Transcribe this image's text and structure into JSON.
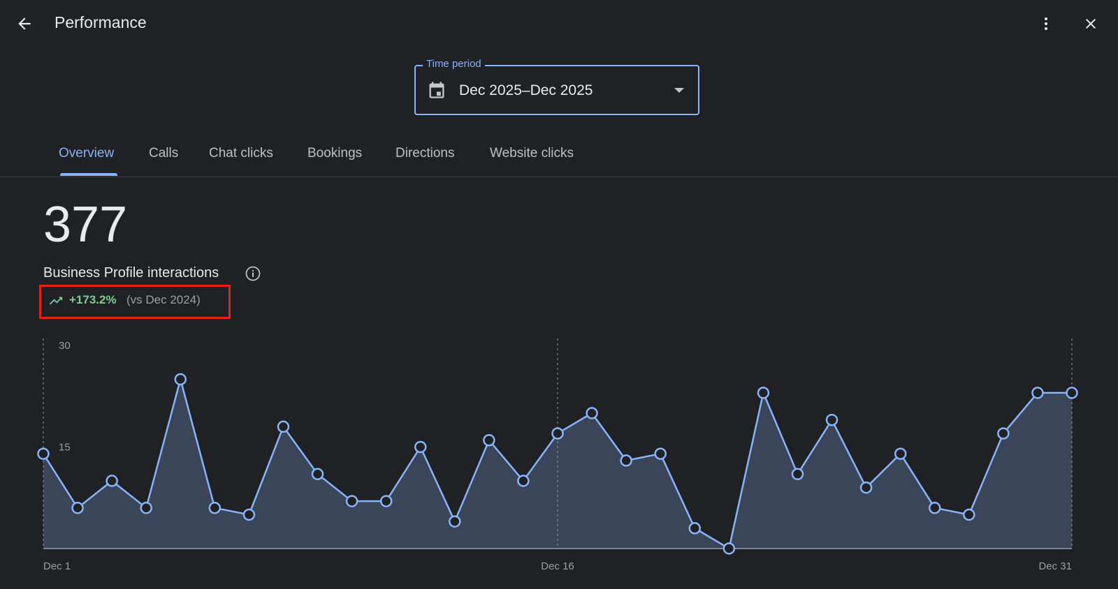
{
  "header": {
    "title": "Performance"
  },
  "time_period": {
    "label": "Time period",
    "value": "Dec 2025–Dec 2025"
  },
  "tabs": [
    {
      "label": "Overview",
      "active": true
    },
    {
      "label": "Calls"
    },
    {
      "label": "Chat clicks"
    },
    {
      "label": "Bookings"
    },
    {
      "label": "Directions"
    },
    {
      "label": "Website clicks"
    }
  ],
  "metric": {
    "value": "377",
    "label": "Business Profile interactions",
    "change": "+173.2%",
    "comparison": "(vs Dec 2024)"
  },
  "colors": {
    "accent": "#8ab4f8",
    "positive": "#81c995",
    "highlight": "#e2231a",
    "background": "#202124"
  },
  "icons": {
    "back": "arrow-left-icon",
    "more": "more-vert-icon",
    "close": "close-icon",
    "calendar": "calendar-icon",
    "dropdown": "caret-down-icon",
    "info": "info-icon",
    "trend": "trending-up-icon"
  },
  "chart_data": {
    "type": "area",
    "ylim": [
      0,
      30
    ],
    "yticks": [
      30,
      15
    ],
    "x": [
      "Dec 1",
      "Dec 2",
      "Dec 3",
      "Dec 4",
      "Dec 5",
      "Dec 6",
      "Dec 7",
      "Dec 8",
      "Dec 9",
      "Dec 10",
      "Dec 11",
      "Dec 12",
      "Dec 13",
      "Dec 14",
      "Dec 15",
      "Dec 16",
      "Dec 17",
      "Dec 18",
      "Dec 19",
      "Dec 20",
      "Dec 21",
      "Dec 22",
      "Dec 23",
      "Dec 24",
      "Dec 25",
      "Dec 26",
      "Dec 27",
      "Dec 28",
      "Dec 29",
      "Dec 30",
      "Dec 31"
    ],
    "xticks": [
      "Dec 1",
      "Dec 16",
      "Dec 31"
    ],
    "values": [
      14,
      6,
      10,
      6,
      25,
      6,
      5,
      18,
      11,
      7,
      7,
      15,
      4,
      16,
      10,
      17,
      20,
      13,
      14,
      3,
      0,
      23,
      11,
      19,
      9,
      14,
      6,
      5,
      17,
      23,
      23
    ],
    "grid": false
  }
}
